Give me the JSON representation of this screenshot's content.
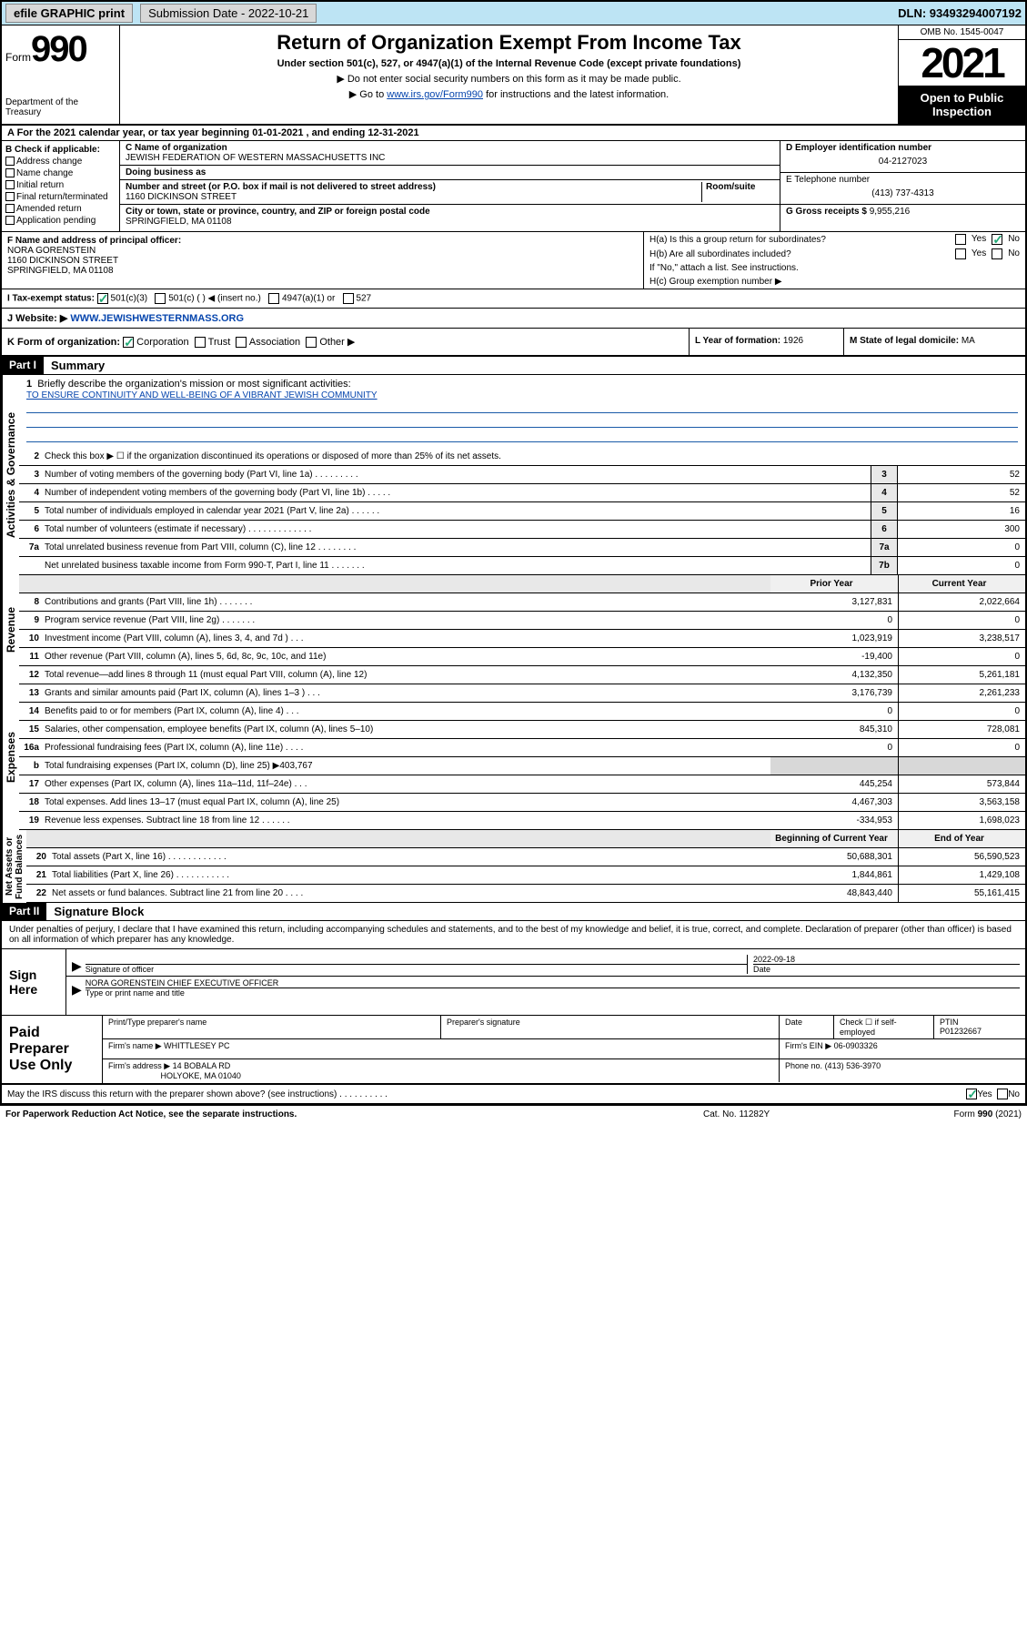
{
  "topbar": {
    "efile": "efile GRAPHIC print",
    "subdate_label": "Submission Date - 2022-10-21",
    "dln": "DLN: 93493294007192"
  },
  "header": {
    "form_label": "Form",
    "form_num": "990",
    "dept": "Department of the Treasury",
    "title": "Return of Organization Exempt From Income Tax",
    "sub": "Under section 501(c), 527, or 4947(a)(1) of the Internal Revenue Code (except private foundations)",
    "note1": "▶ Do not enter social security numbers on this form as it may be made public.",
    "note2_pre": "▶ Go to ",
    "note2_link": "www.irs.gov/Form990",
    "note2_post": " for instructions and the latest information.",
    "omb": "OMB No. 1545-0047",
    "year": "2021",
    "inspect": "Open to Public Inspection"
  },
  "row_a": "A For the 2021 calendar year, or tax year beginning 01-01-2021    , and ending 12-31-2021",
  "col_b": {
    "header": "B Check if applicable:",
    "items": [
      "Address change",
      "Name change",
      "Initial return",
      "Final return/terminated",
      "Amended return",
      "Application pending"
    ]
  },
  "col_c": {
    "name_lbl": "C Name of organization",
    "name": "JEWISH FEDERATION OF WESTERN MASSACHUSETTS INC",
    "dba_lbl": "Doing business as",
    "street_lbl": "Number and street (or P.O. box if mail is not delivered to street address)",
    "room_lbl": "Room/suite",
    "street": "1160 DICKINSON STREET",
    "city_lbl": "City or town, state or province, country, and ZIP or foreign postal code",
    "city": "SPRINGFIELD, MA  01108"
  },
  "col_de": {
    "d_lbl": "D Employer identification number",
    "d_val": "04-2127023",
    "e_lbl": "E Telephone number",
    "e_val": "(413) 737-4313",
    "g_lbl": "G Gross receipts $",
    "g_val": "9,955,216"
  },
  "col_f": {
    "lbl": "F Name and address of principal officer:",
    "name": "NORA GORENSTEIN",
    "addr1": "1160 DICKINSON STREET",
    "addr2": "SPRINGFIELD, MA  01108"
  },
  "col_h": {
    "ha_lbl": "H(a)  Is this a group return for subordinates?",
    "hb_lbl": "H(b)  Are all subordinates included?",
    "hb_note": "If \"No,\" attach a list. See instructions.",
    "hc_lbl": "H(c)  Group exemption number ▶"
  },
  "row_i": {
    "lbl": "I   Tax-exempt status:",
    "opts": [
      "501(c)(3)",
      "501(c) (   ) ◀ (insert no.)",
      "4947(a)(1) or",
      "527"
    ]
  },
  "row_j": {
    "lbl": "J   Website: ▶ ",
    "val": "WWW.JEWISHWESTERNMASS.ORG"
  },
  "row_klm": {
    "k": "K Form of organization:",
    "k_opts": [
      "Corporation",
      "Trust",
      "Association",
      "Other ▶"
    ],
    "l_lbl": "L Year of formation:",
    "l_val": "1926",
    "m_lbl": "M State of legal domicile:",
    "m_val": "MA"
  },
  "part1": {
    "hdr": "Part I",
    "title": "Summary",
    "line1_lbl": "Briefly describe the organization's mission or most significant activities:",
    "line1_val": "TO ENSURE CONTINUITY AND WELL-BEING OF A VIBRANT JEWISH COMMUNITY",
    "line2": "Check this box ▶ ☐  if the organization discontinued its operations or disposed of more than 25% of its net assets.",
    "lines_gov": [
      {
        "n": "3",
        "t": "Number of voting members of the governing body (Part VI, line 1a)  .    .    .    .    .    .    .    .    .",
        "box": "3",
        "v": "52"
      },
      {
        "n": "4",
        "t": "Number of independent voting members of the governing body (Part VI, line 1b)  .    .    .    .    .",
        "box": "4",
        "v": "52"
      },
      {
        "n": "5",
        "t": "Total number of individuals employed in calendar year 2021 (Part V, line 2a)  .    .    .    .    .    .",
        "box": "5",
        "v": "16"
      },
      {
        "n": "6",
        "t": "Total number of volunteers (estimate if necessary)  .    .    .    .    .    .    .    .    .    .    .    .    .",
        "box": "6",
        "v": "300"
      },
      {
        "n": "7a",
        "t": "Total unrelated business revenue from Part VIII, column (C), line 12  .    .    .    .    .    .    .    .",
        "box": "7a",
        "v": "0"
      },
      {
        "n": "",
        "t": "Net unrelated business taxable income from Form 990-T, Part I, line 11  .    .    .    .    .    .    .",
        "box": "7b",
        "v": "0"
      }
    ],
    "col_prior": "Prior Year",
    "col_curr": "Current Year",
    "lines_rev": [
      {
        "n": "8",
        "t": "Contributions and grants (Part VIII, line 1h)  .    .    .    .    .    .    .",
        "p": "3,127,831",
        "c": "2,022,664"
      },
      {
        "n": "9",
        "t": "Program service revenue (Part VIII, line 2g)  .    .    .    .    .    .    .",
        "p": "0",
        "c": "0"
      },
      {
        "n": "10",
        "t": "Investment income (Part VIII, column (A), lines 3, 4, and 7d )  .    .    .",
        "p": "1,023,919",
        "c": "3,238,517"
      },
      {
        "n": "11",
        "t": "Other revenue (Part VIII, column (A), lines 5, 6d, 8c, 9c, 10c, and 11e)",
        "p": "-19,400",
        "c": "0"
      },
      {
        "n": "12",
        "t": "Total revenue—add lines 8 through 11 (must equal Part VIII, column (A), line 12)",
        "p": "4,132,350",
        "c": "5,261,181"
      }
    ],
    "lines_exp": [
      {
        "n": "13",
        "t": "Grants and similar amounts paid (Part IX, column (A), lines 1–3 )  .    .    .",
        "p": "3,176,739",
        "c": "2,261,233"
      },
      {
        "n": "14",
        "t": "Benefits paid to or for members (Part IX, column (A), line 4)  .    .    .",
        "p": "0",
        "c": "0"
      },
      {
        "n": "15",
        "t": "Salaries, other compensation, employee benefits (Part IX, column (A), lines 5–10)",
        "p": "845,310",
        "c": "728,081"
      },
      {
        "n": "16a",
        "t": "Professional fundraising fees (Part IX, column (A), line 11e)  .    .    .    .",
        "p": "0",
        "c": "0"
      },
      {
        "n": "b",
        "t": "Total fundraising expenses (Part IX, column (D), line 25) ▶403,767",
        "p": "",
        "c": "",
        "shade": true
      },
      {
        "n": "17",
        "t": "Other expenses (Part IX, column (A), lines 11a–11d, 11f–24e)  .    .    .",
        "p": "445,254",
        "c": "573,844"
      },
      {
        "n": "18",
        "t": "Total expenses. Add lines 13–17 (must equal Part IX, column (A), line 25)",
        "p": "4,467,303",
        "c": "3,563,158"
      },
      {
        "n": "19",
        "t": "Revenue less expenses. Subtract line 18 from line 12  .    .    .    .    .    .",
        "p": "-334,953",
        "c": "1,698,023"
      }
    ],
    "col_beg": "Beginning of Current Year",
    "col_end": "End of Year",
    "lines_net": [
      {
        "n": "20",
        "t": "Total assets (Part X, line 16)  .    .    .    .    .    .    .    .    .    .    .    .",
        "p": "50,688,301",
        "c": "56,590,523"
      },
      {
        "n": "21",
        "t": "Total liabilities (Part X, line 26)  .    .    .    .    .    .    .    .    .    .    .",
        "p": "1,844,861",
        "c": "1,429,108"
      },
      {
        "n": "22",
        "t": "Net assets or fund balances. Subtract line 21 from line 20  .    .    .    .",
        "p": "48,843,440",
        "c": "55,161,415"
      }
    ]
  },
  "part2": {
    "hdr": "Part II",
    "title": "Signature Block",
    "note": "Under penalties of perjury, I declare that I have examined this return, including accompanying schedules and statements, and to the best of my knowledge and belief, it is true, correct, and complete. Declaration of preparer (other than officer) is based on all information of which preparer has any knowledge.",
    "sign_here": "Sign Here",
    "sig_officer": "Signature of officer",
    "sig_date": "2022-09-18",
    "date_lbl": "Date",
    "officer_name": "NORA GORENSTEIN  CHIEF EXECUTIVE OFFICER",
    "type_name": "Type or print name and title",
    "paid": "Paid Preparer Use Only",
    "prep_name_lbl": "Print/Type preparer's name",
    "prep_sig_lbl": "Preparer's signature",
    "prep_date_lbl": "Date",
    "prep_check": "Check ☐ if self-employed",
    "ptin_lbl": "PTIN",
    "ptin": "P01232667",
    "firm_name_lbl": "Firm's name     ▶",
    "firm_name": "WHITTLESEY PC",
    "firm_ein_lbl": "Firm's EIN ▶",
    "firm_ein": "06-0903326",
    "firm_addr_lbl": "Firm's address ▶",
    "firm_addr1": "14 BOBALA RD",
    "firm_addr2": "HOLYOKE, MA  01040",
    "phone_lbl": "Phone no.",
    "phone": "(413) 536-3970",
    "may_discuss": "May the IRS discuss this return with the preparer shown above? (see instructions)  .    .    .    .    .    .    .    .    .    ."
  },
  "footer": {
    "l": "For Paperwork Reduction Act Notice, see the separate instructions.",
    "m": "Cat. No. 11282Y",
    "r": "Form 990 (2021)"
  }
}
